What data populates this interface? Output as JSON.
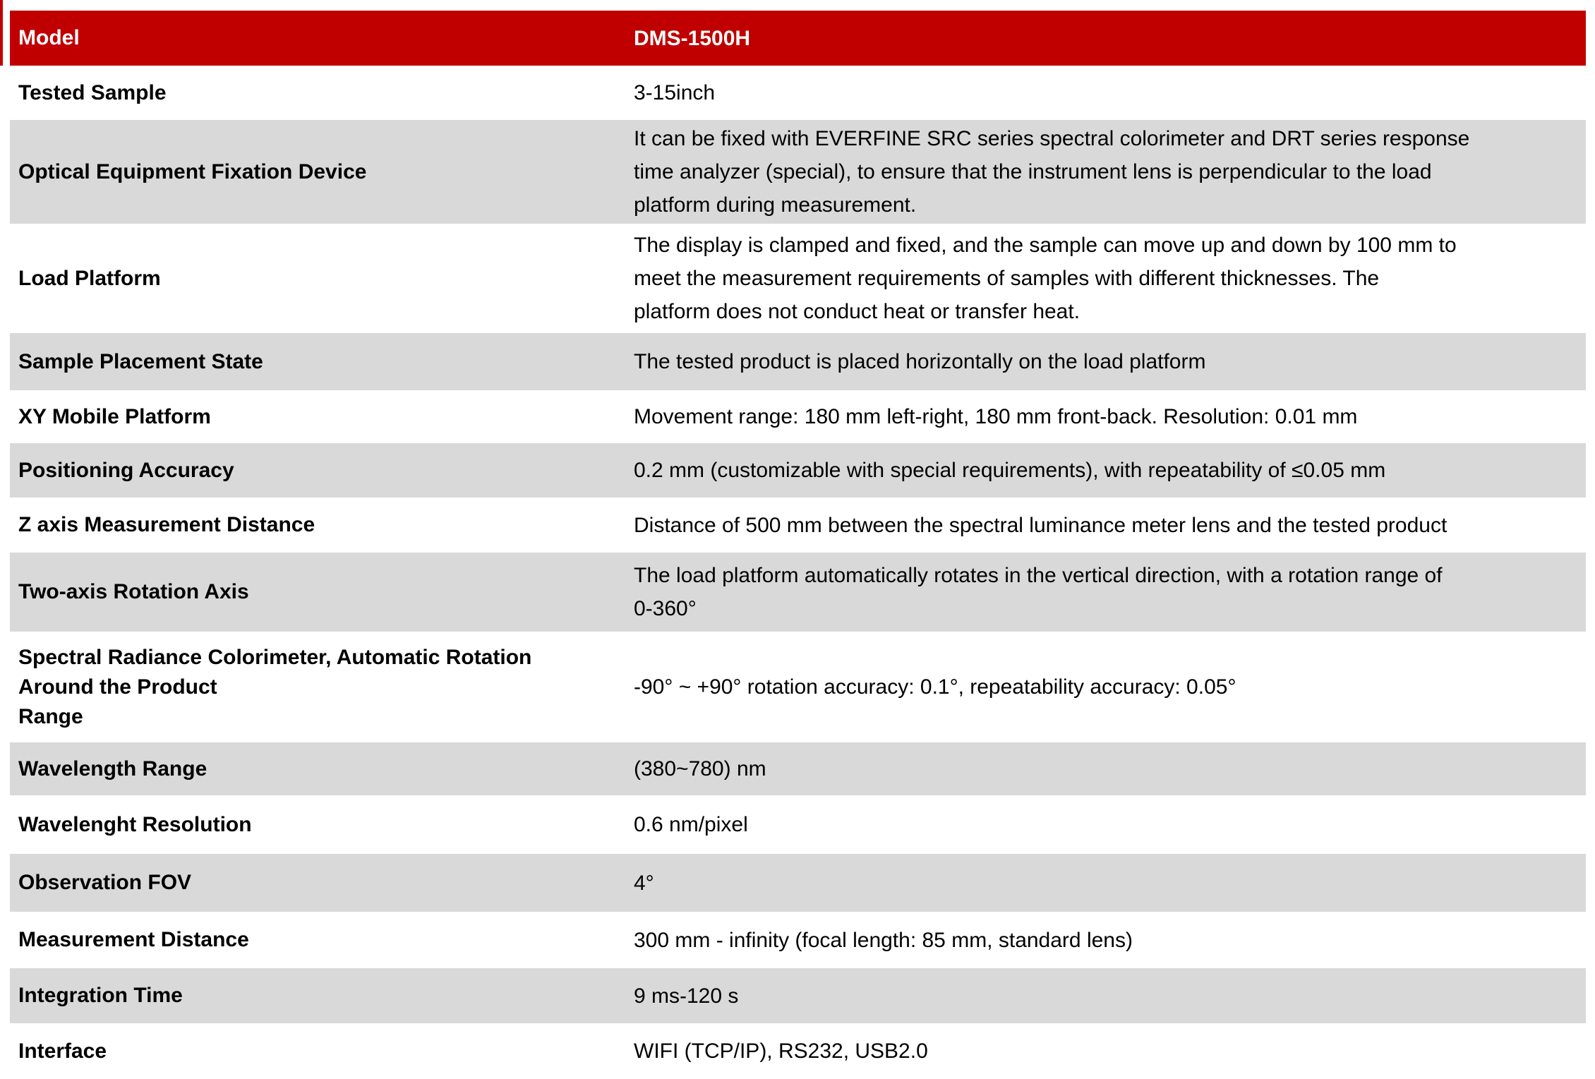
{
  "theme": {
    "header_bg": "#c00000",
    "header_text": "#ffffff",
    "row_bg": "#ffffff",
    "row_alt_bg": "#d9d9d9",
    "text": "#000000"
  },
  "table": {
    "header": {
      "label": "Model",
      "value": "DMS-1500H"
    },
    "rows": [
      {
        "label": "Tested Sample",
        "value": "3-15inch"
      },
      {
        "label": "Optical Equipment Fixation Device",
        "value": "It can be fixed with EVERFINE SRC series spectral colorimeter and DRT series response\ntime analyzer (special), to ensure that the instrument lens is perpendicular to the load\nplatform during measurement."
      },
      {
        "label": "Load Platform",
        "value": "The display is clamped and fixed, and the sample can move up and down by 100 mm to\nmeet the measurement requirements of samples with different thicknesses. The\nplatform does not conduct heat or transfer heat."
      },
      {
        "label": "Sample Placement State",
        "value": "The tested product is placed horizontally on the load platform"
      },
      {
        "label": "XY Mobile Platform",
        "value": "Movement range: 180 mm left-right, 180 mm front-back. Resolution: 0.01 mm"
      },
      {
        "label": "Positioning Accuracy",
        "value": "0.2 mm (customizable with special requirements), with repeatability of ≤0.05 mm"
      },
      {
        "label": "Z axis Measurement Distance",
        "value": "Distance of 500 mm between the spectral luminance meter lens and the tested product"
      },
      {
        "label": "Two-axis Rotation Axis",
        "value": "The load platform automatically rotates in the vertical direction, with a rotation range of\n0-360°"
      },
      {
        "label": "Spectral Radiance Colorimeter, Automatic Rotation\nAround the Product\nRange",
        "value": "-90° ~ +90° rotation accuracy: 0.1°, repeatability accuracy: 0.05°"
      },
      {
        "label": "Wavelength Range",
        "value": "(380~780) nm"
      },
      {
        "label": "Wavelenght Resolution",
        "value": "0.6 nm/pixel"
      },
      {
        "label": "Observation FOV",
        "value": "4°"
      },
      {
        "label": "Measurement Distance",
        "value": "300 mm - infinity  (focal length: 85 mm, standard lens)"
      },
      {
        "label": "Integration Time",
        "value": "9 ms-120 s"
      },
      {
        "label": "Interface",
        "value": "WIFI (TCP/IP), RS232, USB2.0"
      }
    ]
  }
}
